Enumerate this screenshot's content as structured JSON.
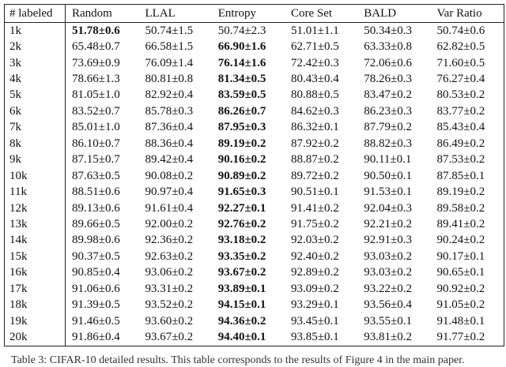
{
  "table": {
    "header": [
      "# labeled",
      "Random",
      "LLAL",
      "Entropy",
      "Core Set",
      "BALD",
      "Var Ratio"
    ],
    "rows": [
      [
        "1k",
        "51.78±0.6",
        "50.74±1.5",
        "50.74±2.3",
        "51.01±1.1",
        "50.34±0.3",
        "50.74±0.6"
      ],
      [
        "2k",
        "65.48±0.7",
        "66.58±1.5",
        "66.90±1.6",
        "62.71±0.5",
        "63.33±0.8",
        "62.82±0.5"
      ],
      [
        "3k",
        "73.69±0.9",
        "76.09±1.4",
        "76.14±1.6",
        "72.42±0.3",
        "72.06±0.6",
        "71.60±0.5"
      ],
      [
        "4k",
        "78.66±1.3",
        "80.81±0.8",
        "81.34±0.5",
        "80.43±0.4",
        "78.26±0.3",
        "76.27±0.4"
      ],
      [
        "5k",
        "81.05±1.0",
        "82.92±0.4",
        "83.59±0.5",
        "80.88±0.5",
        "83.47±0.2",
        "80.53±0.2"
      ],
      [
        "6k",
        "83.52±0.7",
        "85.78±0.3",
        "86.26±0.7",
        "84.62±0.3",
        "86.23±0.3",
        "83.77±0.2"
      ],
      [
        "7k",
        "85.01±1.0",
        "87.36±0.4",
        "87.95±0.3",
        "86.32±0.1",
        "87.79±0.2",
        "85.43±0.4"
      ],
      [
        "8k",
        "86.10±0.7",
        "88.36±0.4",
        "89.19±0.2",
        "87.92±0.2",
        "88.82±0.3",
        "86.49±0.2"
      ],
      [
        "9k",
        "87.15±0.7",
        "89.42±0.4",
        "90.16±0.2",
        "88.87±0.2",
        "90.11±0.1",
        "87.53±0.2"
      ],
      [
        "10k",
        "87.63±0.5",
        "90.08±0.2",
        "90.89±0.2",
        "89.72±0.2",
        "90.50±0.1",
        "87.85±0.1"
      ],
      [
        "11k",
        "88.51±0.6",
        "90.97±0.4",
        "91.65±0.3",
        "90.51±0.1",
        "91.53±0.1",
        "89.19±0.2"
      ],
      [
        "12k",
        "89.13±0.6",
        "91.61±0.4",
        "92.27±0.1",
        "91.41±0.2",
        "92.04±0.3",
        "89.58±0.2"
      ],
      [
        "13k",
        "89.66±0.5",
        "92.00±0.2",
        "92.76±0.2",
        "91.75±0.2",
        "92.21±0.2",
        "89.41±0.2"
      ],
      [
        "14k",
        "89.98±0.6",
        "92.36±0.2",
        "93.18±0.2",
        "92.03±0.2",
        "92.91±0.3",
        "90.24±0.2"
      ],
      [
        "15k",
        "90.37±0.5",
        "92.63±0.2",
        "93.35±0.2",
        "92.40±0.2",
        "93.03±0.2",
        "90.17±0.1"
      ],
      [
        "16k",
        "90.85±0.4",
        "93.06±0.2",
        "93.67±0.2",
        "92.89±0.2",
        "93.03±0.2",
        "90.65±0.1"
      ],
      [
        "17k",
        "91.06±0.6",
        "93.31±0.2",
        "93.89±0.1",
        "93.09±0.2",
        "93.22±0.2",
        "90.92±0.2"
      ],
      [
        "18k",
        "91.39±0.5",
        "93.52±0.2",
        "94.15±0.1",
        "93.29±0.1",
        "93.56±0.4",
        "91.05±0.2"
      ],
      [
        "19k",
        "91.46±0.5",
        "93.60±0.2",
        "94.36±0.2",
        "93.45±0.1",
        "93.55±0.1",
        "91.48±0.1"
      ],
      [
        "20k",
        "91.86±0.4",
        "93.67±0.2",
        "94.40±0.1",
        "93.85±0.1",
        "93.81±0.2",
        "91.77±0.2"
      ]
    ],
    "bold_column": [
      1,
      3,
      3,
      3,
      3,
      3,
      3,
      3,
      3,
      3,
      3,
      3,
      3,
      3,
      3,
      3,
      3,
      3,
      3,
      3
    ]
  },
  "caption": "Table 3: CIFAR-10 detailed results. This table corresponds to the results of Figure 4 in the main paper."
}
